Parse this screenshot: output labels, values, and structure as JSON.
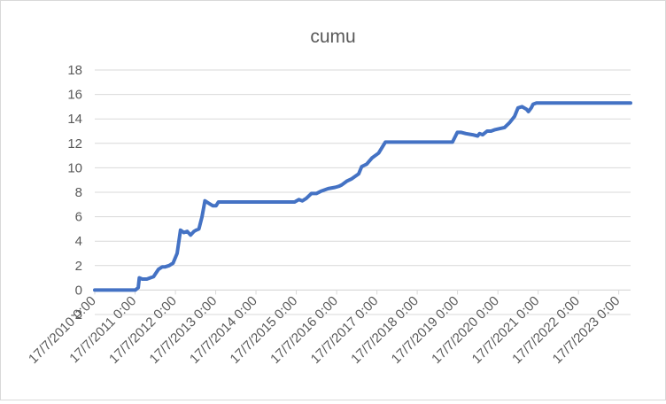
{
  "chart_data": {
    "type": "line",
    "title": "cumu",
    "xlabel": "",
    "ylabel": "",
    "ylim": [
      -2,
      18
    ],
    "yticks": [
      -2,
      0,
      2,
      4,
      6,
      8,
      10,
      12,
      14,
      16,
      18
    ],
    "xlim": [
      "2010-07-17",
      "2023-11-01"
    ],
    "xticks": [
      {
        "date": "2010-07-17",
        "label": "17/7/2010 0:00"
      },
      {
        "date": "2011-07-17",
        "label": "17/7/2011 0:00"
      },
      {
        "date": "2012-07-17",
        "label": "17/7/2012 0:00"
      },
      {
        "date": "2013-07-17",
        "label": "17/7/2013 0:00"
      },
      {
        "date": "2014-07-17",
        "label": "17/7/2014 0:00"
      },
      {
        "date": "2015-07-17",
        "label": "17/7/2015 0:00"
      },
      {
        "date": "2016-07-17",
        "label": "17/7/2016 0:00"
      },
      {
        "date": "2017-07-17",
        "label": "17/7/2017 0:00"
      },
      {
        "date": "2018-07-17",
        "label": "17/7/2018 0:00"
      },
      {
        "date": "2019-07-17",
        "label": "17/7/2019 0:00"
      },
      {
        "date": "2020-07-17",
        "label": "17/7/2020 0:00"
      },
      {
        "date": "2021-07-17",
        "label": "17/7/2021 0:00"
      },
      {
        "date": "2022-07-17",
        "label": "17/7/2022 0:00"
      },
      {
        "date": "2023-07-17",
        "label": "17/7/2023 0:00"
      }
    ],
    "grid": true,
    "legend": "none",
    "series": [
      {
        "color": "#4472c4",
        "x": [
          "2010-07-17",
          "2011-06-01",
          "2011-07-20",
          "2011-08-15",
          "2011-08-25",
          "2011-09-20",
          "2011-11-01",
          "2012-01-01",
          "2012-02-15",
          "2012-03-20",
          "2012-04-15",
          "2012-05-20",
          "2012-06-25",
          "2012-08-01",
          "2012-09-01",
          "2012-10-01",
          "2012-11-01",
          "2012-12-01",
          "2013-01-01",
          "2013-01-20",
          "2013-02-15",
          "2013-03-15",
          "2013-04-10",
          "2013-05-15",
          "2013-06-20",
          "2013-07-20",
          "2013-08-10",
          "2013-08-30",
          "2013-09-25",
          "2013-10-20",
          "2013-12-01",
          "2014-01-01",
          "2014-02-01",
          "2015-07-01",
          "2015-08-10",
          "2015-09-10",
          "2015-10-15",
          "2015-12-01",
          "2016-01-15",
          "2016-03-01",
          "2016-05-01",
          "2016-07-01",
          "2016-08-10",
          "2016-09-01",
          "2016-10-15",
          "2016-12-01",
          "2017-02-01",
          "2017-03-01",
          "2017-04-15",
          "2017-06-01",
          "2017-08-01",
          "2017-10-01",
          "2017-11-10",
          "2017-11-25",
          "2018-01-01",
          "2019-06-01",
          "2019-07-15",
          "2019-08-20",
          "2019-10-01",
          "2019-12-01",
          "2020-01-15",
          "2020-02-01",
          "2020-03-01",
          "2020-04-10",
          "2020-05-15",
          "2020-06-15",
          "2020-08-01",
          "2020-09-15",
          "2020-11-01",
          "2020-12-15",
          "2021-01-15",
          "2021-02-20",
          "2021-04-01",
          "2021-04-20",
          "2021-05-15",
          "2021-06-01",
          "2021-07-01",
          "2021-08-01",
          "2021-09-01",
          "2021-10-01",
          "2021-11-01",
          "2023-11-01"
        ],
        "y": [
          0,
          0,
          0,
          0.2,
          1.0,
          0.9,
          0.9,
          1.1,
          1.7,
          1.9,
          1.9,
          2.0,
          2.2,
          3.0,
          4.9,
          4.7,
          4.8,
          4.5,
          4.8,
          4.9,
          5.0,
          6.0,
          7.3,
          7.1,
          6.9,
          6.9,
          7.2,
          7.2,
          7.2,
          7.2,
          7.2,
          7.2,
          7.2,
          7.2,
          7.4,
          7.3,
          7.5,
          7.9,
          7.9,
          8.1,
          8.3,
          8.4,
          8.5,
          8.6,
          8.9,
          9.1,
          9.5,
          10.1,
          10.3,
          10.8,
          11.2,
          12.1,
          12.1,
          12.1,
          12.1,
          12.1,
          12.9,
          12.9,
          12.8,
          12.7,
          12.6,
          12.8,
          12.7,
          13.0,
          13.0,
          13.1,
          13.2,
          13.3,
          13.7,
          14.2,
          14.9,
          15.0,
          14.8,
          14.6,
          14.9,
          15.2,
          15.3,
          15.3,
          15.3,
          15.3,
          15.3,
          15.3
        ]
      }
    ]
  }
}
